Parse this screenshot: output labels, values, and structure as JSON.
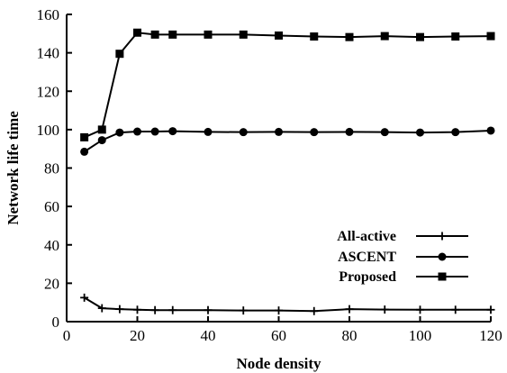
{
  "chart_data": {
    "type": "line",
    "title": "",
    "xlabel": "Node density",
    "ylabel": "Network life time",
    "xlim": [
      0,
      120
    ],
    "ylim": [
      0,
      160
    ],
    "xticks": [
      0,
      20,
      40,
      60,
      80,
      100,
      120
    ],
    "yticks": [
      0,
      20,
      40,
      60,
      80,
      100,
      120,
      140,
      160
    ],
    "grid": false,
    "legend": "bottom-right",
    "series": [
      {
        "name": "All-active",
        "marker": "plus",
        "color": "#000000",
        "x": [
          5,
          10,
          15,
          20,
          25,
          30,
          40,
          50,
          60,
          70,
          80,
          90,
          100,
          110,
          120
        ],
        "y": [
          12.5,
          7,
          6.5,
          6.2,
          6,
          6,
          6,
          5.8,
          5.8,
          5.5,
          6.5,
          6.3,
          6.2,
          6.2,
          6.2
        ]
      },
      {
        "name": "ASCENT",
        "marker": "circle",
        "color": "#000000",
        "x": [
          5,
          10,
          15,
          20,
          25,
          30,
          40,
          50,
          60,
          70,
          80,
          90,
          100,
          110,
          120
        ],
        "y": [
          88.5,
          94.5,
          98.5,
          99,
          99,
          99.2,
          98.8,
          98.7,
          98.8,
          98.7,
          98.8,
          98.7,
          98.5,
          98.7,
          99.5
        ]
      },
      {
        "name": "Proposed",
        "marker": "square",
        "color": "#000000",
        "x": [
          5,
          10,
          15,
          20,
          25,
          30,
          40,
          50,
          60,
          70,
          80,
          90,
          100,
          110,
          120
        ],
        "y": [
          96,
          100,
          139.5,
          150.5,
          149.5,
          149.5,
          149.5,
          149.5,
          149,
          148.5,
          148.2,
          148.7,
          148.2,
          148.5,
          148.7
        ]
      }
    ]
  }
}
